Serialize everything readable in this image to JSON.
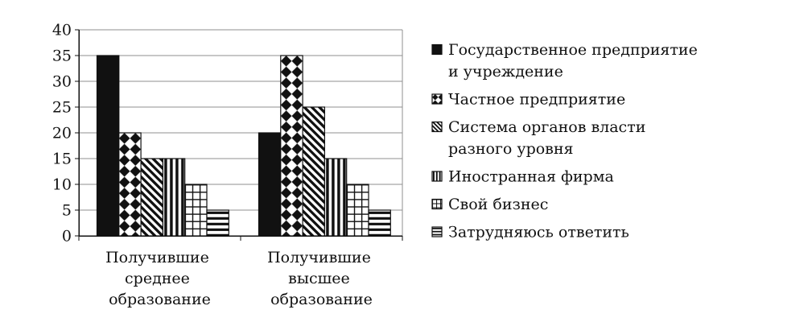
{
  "colors": {
    "ink": "#111111",
    "grid": "#8f8f8f",
    "background": "#ffffff"
  },
  "chart_data": {
    "type": "bar",
    "title": "",
    "xlabel": "",
    "ylabel": "",
    "categories": [
      "Получившие среднее образование",
      "Получившие высшее образование"
    ],
    "series": [
      {
        "name": "Государственное предприятие и учреждение",
        "values": [
          35,
          20
        ],
        "pattern": "solid"
      },
      {
        "name": "Частное предприятие",
        "values": [
          20,
          35
        ],
        "pattern": "diamonds"
      },
      {
        "name": "Система органов власти разного уровня",
        "values": [
          15,
          25
        ],
        "pattern": "diagonal-stripes"
      },
      {
        "name": "Иностранная фирма",
        "values": [
          15,
          15
        ],
        "pattern": "vertical-stripes"
      },
      {
        "name": "Свой бизнес",
        "values": [
          10,
          10
        ],
        "pattern": "grid"
      },
      {
        "name": "Затрудняюсь ответить",
        "values": [
          5,
          5
        ],
        "pattern": "horizontal-stripes"
      }
    ],
    "ylim": [
      0,
      40
    ],
    "yticks": [
      0,
      5,
      10,
      15,
      20,
      25,
      30,
      35,
      40
    ],
    "grid": true,
    "legend": "right"
  }
}
